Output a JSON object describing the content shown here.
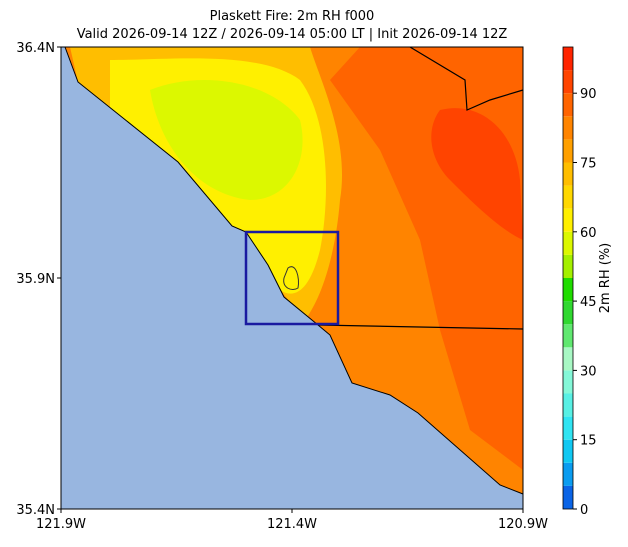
{
  "map": {
    "title": "Plaskett Fire: 2m RH f000",
    "subtitle": "Valid 2026-09-14 12Z / 2026-09-14 05:00 LT | Init 2026-09-14 12Z",
    "xlim": [
      -121.9,
      -120.9
    ],
    "ylim": [
      35.4,
      36.4
    ],
    "xticks": [
      {
        "value": -121.9,
        "label": "121.9W"
      },
      {
        "value": -121.4,
        "label": "121.4W"
      },
      {
        "value": -120.9,
        "label": "120.9W"
      }
    ],
    "yticks": [
      {
        "value": 35.4,
        "label": "35.4N"
      },
      {
        "value": 35.9,
        "label": "35.9N"
      },
      {
        "value": 36.4,
        "label": "36.4N"
      }
    ],
    "colorbar": {
      "label": "2m RH (%)",
      "lim": [
        0,
        100
      ],
      "ticks": [
        0,
        15,
        30,
        45,
        60,
        75,
        90
      ],
      "levels": [
        0,
        5,
        10,
        15,
        20,
        25,
        30,
        35,
        40,
        45,
        50,
        55,
        60,
        65,
        70,
        75,
        80,
        85,
        90,
        95,
        100
      ],
      "colors": [
        "#0a64e6",
        "#0a9cf0",
        "#10c8f2",
        "#30e4f2",
        "#58f0e4",
        "#84f8d8",
        "#a8f8c4",
        "#60e870",
        "#30d830",
        "#20dc00",
        "#a4f000",
        "#dcf800",
        "#fff000",
        "#ffd800",
        "#ffbe00",
        "#ffa000",
        "#ff8400",
        "#ff6400",
        "#ff4400",
        "#ff2400"
      ]
    }
  }
}
